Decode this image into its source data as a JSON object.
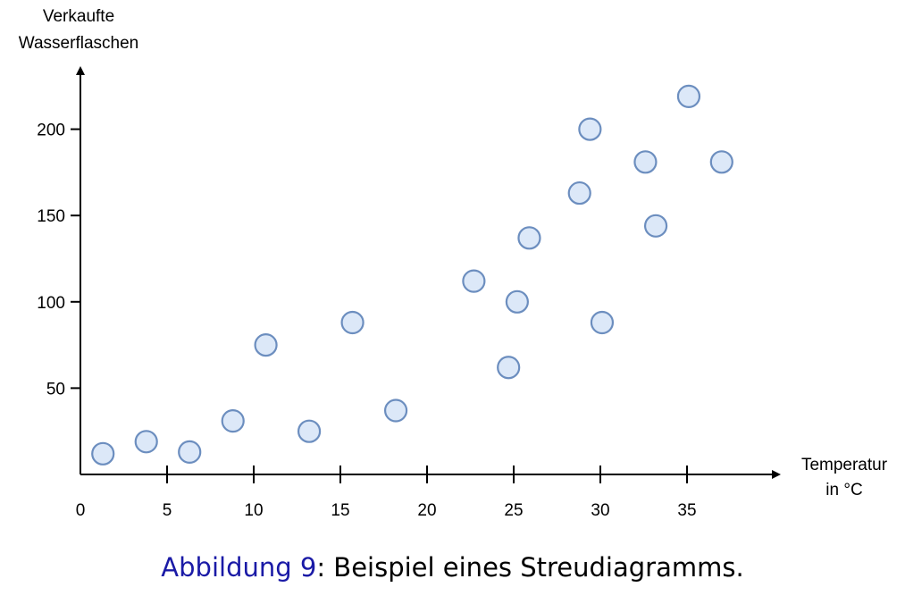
{
  "chart_data": {
    "type": "scatter",
    "ylabel_lines": [
      "Verkaufte",
      "Wasserflaschen"
    ],
    "xlabel_lines": [
      "Temperatur",
      "in °C"
    ],
    "xlim": [
      0,
      40
    ],
    "ylim": [
      0,
      230
    ],
    "x_ticks": [
      0,
      5,
      10,
      15,
      20,
      25,
      30,
      35
    ],
    "y_ticks": [
      50,
      100,
      150,
      200
    ],
    "grid": false,
    "marker_fill": "#dce8f8",
    "marker_stroke": "#6c8ebf",
    "points": [
      {
        "x": 1.3,
        "y": 12
      },
      {
        "x": 3.8,
        "y": 19
      },
      {
        "x": 6.3,
        "y": 13
      },
      {
        "x": 8.8,
        "y": 31
      },
      {
        "x": 10.7,
        "y": 75
      },
      {
        "x": 13.2,
        "y": 25
      },
      {
        "x": 15.7,
        "y": 88
      },
      {
        "x": 18.2,
        "y": 37
      },
      {
        "x": 22.7,
        "y": 112
      },
      {
        "x": 24.7,
        "y": 62
      },
      {
        "x": 25.2,
        "y": 100
      },
      {
        "x": 25.9,
        "y": 137
      },
      {
        "x": 28.8,
        "y": 163
      },
      {
        "x": 29.4,
        "y": 200
      },
      {
        "x": 30.1,
        "y": 88
      },
      {
        "x": 32.6,
        "y": 181
      },
      {
        "x": 33.2,
        "y": 144
      },
      {
        "x": 35.1,
        "y": 219
      },
      {
        "x": 37.0,
        "y": 181
      }
    ]
  },
  "caption": {
    "label": "Abbildung 9",
    "text": ": Beispiel eines Streudiagramms."
  }
}
